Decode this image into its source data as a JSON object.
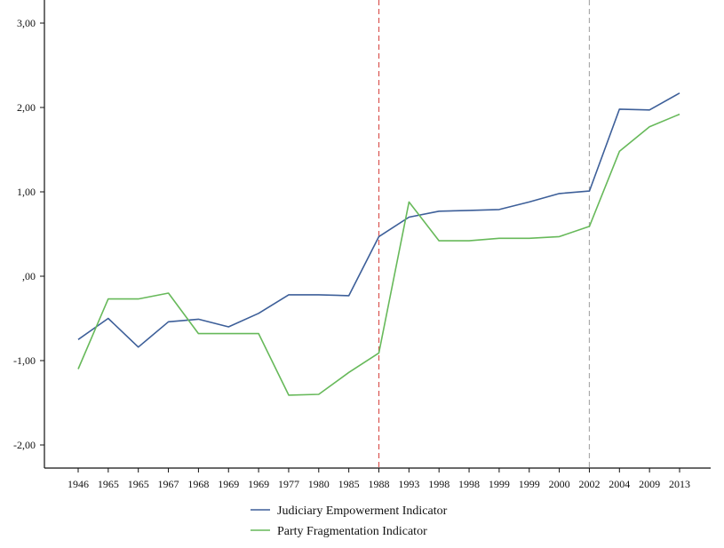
{
  "chart_data": {
    "type": "line",
    "categories": [
      "1946",
      "1965",
      "1965",
      "1967",
      "1968",
      "1969",
      "1969",
      "1977",
      "1980",
      "1985",
      "1988",
      "1993",
      "1998",
      "1998",
      "1999",
      "1999",
      "2000",
      "2002",
      "2004",
      "2009",
      "2013"
    ],
    "series": [
      {
        "name": "Judiciary Empowerment Indicator",
        "color": "#3d5f99",
        "values": [
          -0.75,
          -0.5,
          -0.84,
          -0.54,
          -0.51,
          -0.6,
          -0.44,
          -0.22,
          -0.22,
          -0.23,
          0.47,
          0.7,
          0.77,
          0.78,
          0.79,
          0.88,
          0.98,
          1.01,
          1.98,
          1.97,
          2.17
        ]
      },
      {
        "name": "Party Fragmentation Indicator",
        "color": "#67b95a",
        "values": [
          -1.1,
          -0.27,
          -0.27,
          -0.2,
          -0.68,
          -0.68,
          -0.68,
          -1.41,
          -1.4,
          -1.14,
          -0.91,
          0.88,
          0.42,
          0.42,
          0.45,
          0.45,
          0.47,
          0.59,
          1.48,
          1.77,
          1.92
        ]
      }
    ],
    "yticks": [
      -2,
      -1,
      0,
      1,
      2,
      3
    ],
    "ytick_labels": [
      "-2,00",
      "-1,00",
      ",00",
      "1,00",
      "2,00",
      "3,00"
    ],
    "ylim": [
      -2.3,
      3.3
    ],
    "reference_lines": [
      {
        "category_index": 10,
        "color": "#d9534f"
      },
      {
        "category_index": 17,
        "color": "#aaaaaa"
      }
    ],
    "grid": false,
    "legend_position": "bottom-center",
    "title": "",
    "xlabel": "",
    "ylabel": ""
  }
}
